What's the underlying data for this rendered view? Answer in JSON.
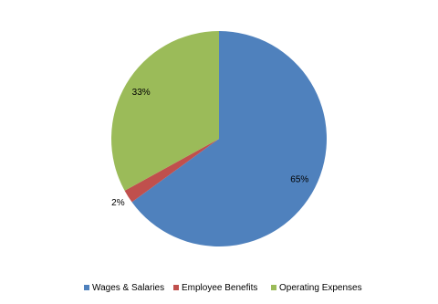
{
  "chart_data": {
    "type": "pie",
    "categories": [
      "Wages & Salaries",
      "Employee Benefits",
      "Operating Expenses"
    ],
    "values": [
      65,
      2,
      33
    ],
    "value_labels": [
      "65%",
      "2%",
      "33%"
    ],
    "colors": [
      "#4f81bd",
      "#c0504d",
      "#9bbb59"
    ],
    "legend": "bottom"
  }
}
